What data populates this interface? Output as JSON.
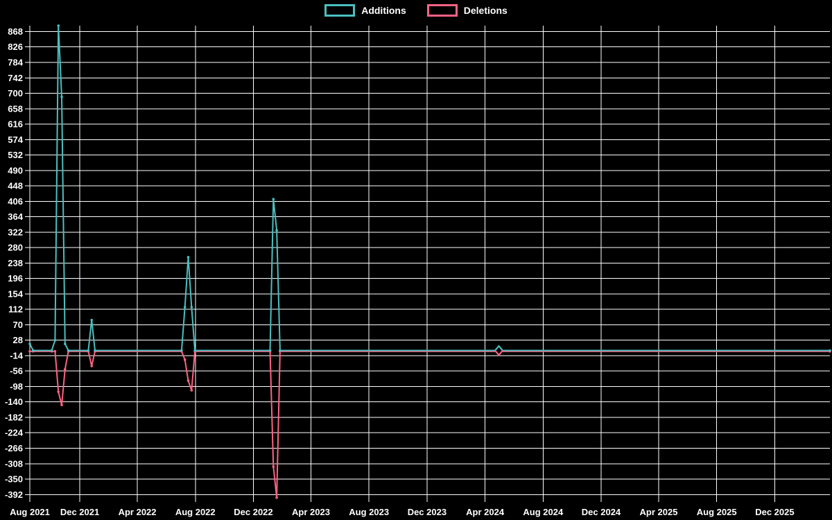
{
  "legend": {
    "items": [
      {
        "label": "Additions",
        "color": "#4bc0c0"
      },
      {
        "label": "Deletions",
        "color": "#ff6384"
      }
    ]
  },
  "chart_data": {
    "type": "line",
    "title": "",
    "background": "#000000",
    "grid": true,
    "grid_color": "#ffffff",
    "text_color": "#ffffff",
    "legend_position": "top",
    "x_axis": {
      "start": "2021-08-18",
      "end": "2026-03-27",
      "tick_labels": [
        "Aug 2021",
        "Dec 2021",
        "Apr 2022",
        "Aug 2022",
        "Dec 2022",
        "Apr 2023",
        "Aug 2023",
        "Dec 2023",
        "Apr 2024",
        "Aug 2024",
        "Dec 2024",
        "Apr 2025",
        "Aug 2025",
        "Dec 2025"
      ],
      "tick_dates": [
        "2021-08-18",
        "2021-12-01",
        "2022-04-01",
        "2022-08-01",
        "2022-12-01",
        "2023-04-01",
        "2023-08-01",
        "2023-12-01",
        "2024-04-01",
        "2024-08-01",
        "2024-12-01",
        "2025-04-01",
        "2025-08-01",
        "2025-12-01"
      ]
    },
    "y_axis": {
      "min": -399,
      "max": 884,
      "tick_step": 42,
      "tick_values": [
        868,
        826,
        784,
        742,
        700,
        658,
        616,
        574,
        532,
        490,
        448,
        406,
        364,
        322,
        280,
        238,
        196,
        154,
        112,
        70,
        28,
        -14,
        -56,
        -98,
        -140,
        -182,
        -224,
        -266,
        -308,
        -350,
        -392
      ]
    },
    "series": [
      {
        "name": "Additions",
        "color": "#4bc0c0",
        "points": [
          [
            "2021-08-18",
            18
          ],
          [
            "2021-08-25",
            0
          ],
          [
            "2021-10-03",
            0
          ],
          [
            "2021-10-10",
            28
          ],
          [
            "2021-10-17",
            884
          ],
          [
            "2021-10-24",
            690
          ],
          [
            "2021-10-31",
            18
          ],
          [
            "2021-11-07",
            0
          ],
          [
            "2021-12-19",
            0
          ],
          [
            "2021-12-26",
            83
          ],
          [
            "2022-01-02",
            0
          ],
          [
            "2022-07-03",
            0
          ],
          [
            "2022-07-10",
            118
          ],
          [
            "2022-07-17",
            254
          ],
          [
            "2022-07-24",
            118
          ],
          [
            "2022-07-31",
            0
          ],
          [
            "2023-01-05",
            0
          ],
          [
            "2023-01-12",
            412
          ],
          [
            "2023-01-19",
            327
          ],
          [
            "2023-01-26",
            0
          ],
          [
            "2024-04-30",
            0
          ],
          [
            "2026-03-27",
            0
          ]
        ]
      },
      {
        "name": "Deletions",
        "color": "#ff6384",
        "points": [
          [
            "2021-08-18",
            0
          ],
          [
            "2021-08-25",
            0
          ],
          [
            "2021-10-03",
            0
          ],
          [
            "2021-10-10",
            0
          ],
          [
            "2021-10-17",
            -110
          ],
          [
            "2021-10-24",
            -146
          ],
          [
            "2021-10-31",
            -49
          ],
          [
            "2021-11-07",
            0
          ],
          [
            "2021-12-19",
            0
          ],
          [
            "2021-12-26",
            -40
          ],
          [
            "2022-01-02",
            0
          ],
          [
            "2022-07-03",
            0
          ],
          [
            "2022-07-10",
            -23
          ],
          [
            "2022-07-17",
            -80
          ],
          [
            "2022-07-24",
            -106
          ],
          [
            "2022-07-31",
            0
          ],
          [
            "2023-01-05",
            0
          ],
          [
            "2023-01-12",
            -314
          ],
          [
            "2023-01-19",
            -398
          ],
          [
            "2023-01-26",
            0
          ],
          [
            "2024-04-30",
            0
          ],
          [
            "2026-03-27",
            0
          ]
        ]
      }
    ],
    "highlight_marker": {
      "date": "2024-04-30",
      "value": 0,
      "shape": "diamond",
      "top_color": "#4bc0c0",
      "bottom_color": "#ff6384"
    }
  }
}
